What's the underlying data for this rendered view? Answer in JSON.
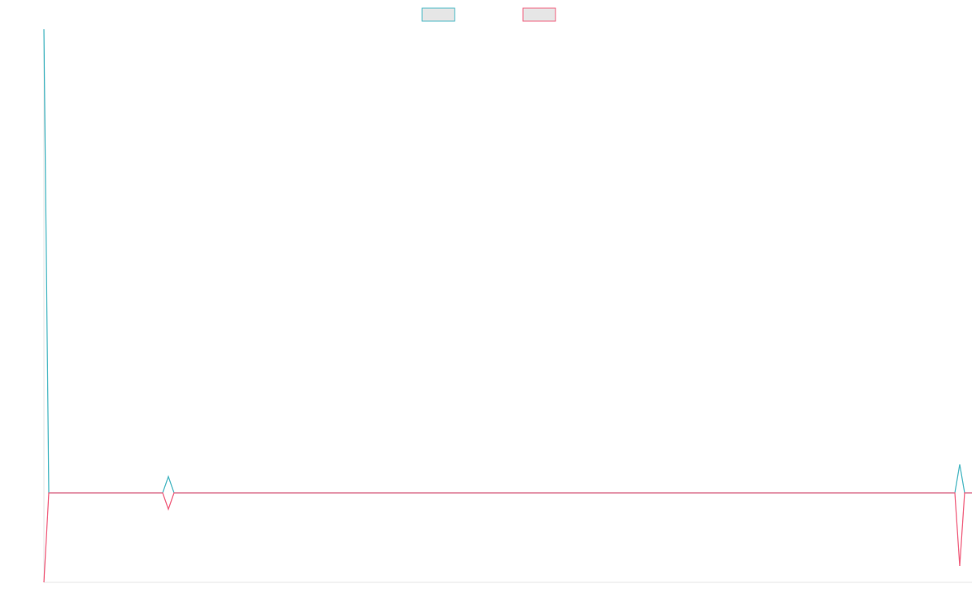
{
  "chart_data": {
    "type": "line",
    "x": [
      0,
      6,
      146,
      153,
      160,
      1120,
      1126,
      1132,
      1141
    ],
    "xlim": [
      0,
      1141
    ],
    "ylim": [
      -1.1,
      5.7
    ],
    "legend": "top",
    "series": [
      {
        "color": "#4bb8c4",
        "values": [
          5.7,
          0,
          0,
          0.2,
          0,
          0,
          0.35,
          0,
          0
        ]
      },
      {
        "color": "#f0617f",
        "values": [
          -1.1,
          0,
          0,
          -0.2,
          0,
          0,
          -0.9,
          0,
          0
        ]
      }
    ]
  }
}
